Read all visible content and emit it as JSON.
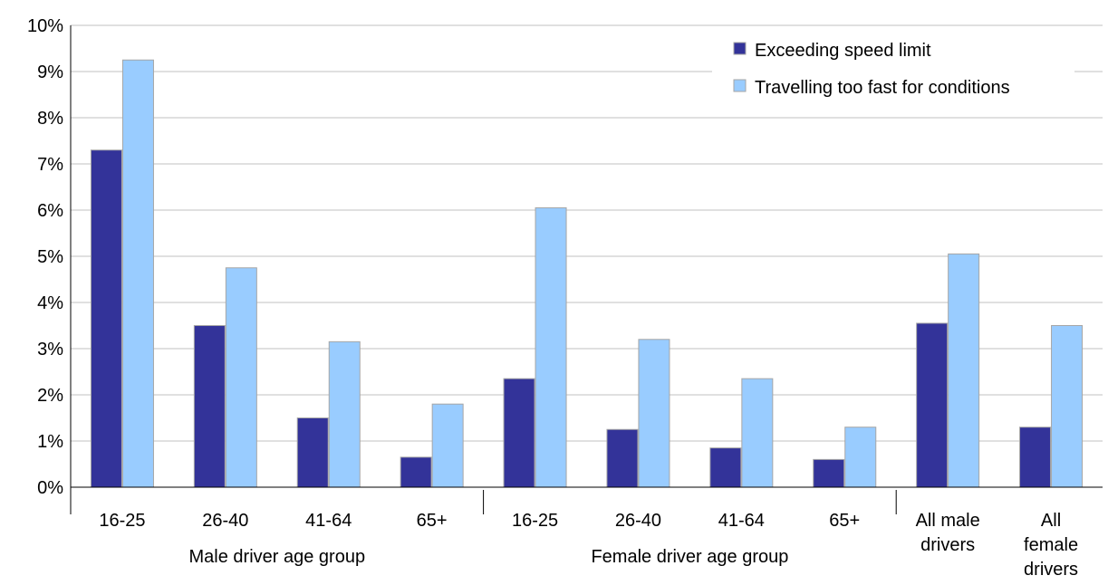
{
  "chart_data": {
    "type": "bar",
    "categories": [
      "16-25",
      "26-40",
      "41-64",
      "65+",
      "16-25",
      "26-40",
      "41-64",
      "65+",
      "All male drivers",
      "All female drivers"
    ],
    "category_label_lines": [
      [
        "16-25"
      ],
      [
        "26-40"
      ],
      [
        "41-64"
      ],
      [
        "65+"
      ],
      [
        "16-25"
      ],
      [
        "26-40"
      ],
      [
        "41-64"
      ],
      [
        "65+"
      ],
      [
        "All male",
        "drivers"
      ],
      [
        "All",
        "female",
        "drivers"
      ]
    ],
    "group_labels": [
      "Male driver age group",
      "Female driver age group"
    ],
    "series": [
      {
        "name": "Exceeding speed limit",
        "color": "#333399",
        "values": [
          7.3,
          3.5,
          1.5,
          0.65,
          2.35,
          1.25,
          0.85,
          0.6,
          3.55,
          1.3
        ]
      },
      {
        "name": "Travelling too fast for conditions",
        "color": "#99ccff",
        "values": [
          9.25,
          4.75,
          3.15,
          1.8,
          6.05,
          3.2,
          2.35,
          1.3,
          5.05,
          3.5
        ]
      }
    ],
    "y_ticks": [
      "0%",
      "1%",
      "2%",
      "3%",
      "4%",
      "5%",
      "6%",
      "7%",
      "8%",
      "9%",
      "10%"
    ],
    "ylim": [
      0,
      10
    ],
    "grid": true,
    "legend_position": "top-right"
  }
}
